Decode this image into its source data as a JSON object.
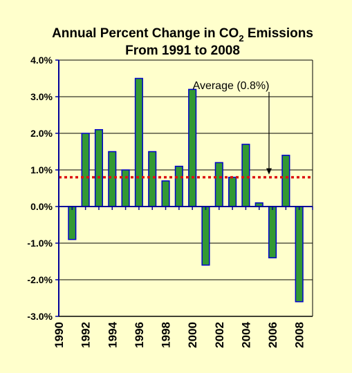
{
  "chart_data": {
    "type": "bar",
    "title_main": "Annual Percent Change in CO",
    "title_sub": "2",
    "title_tail": " Emissions",
    "title_line2": "From 1991 to 2008",
    "x": [
      1991,
      1992,
      1993,
      1994,
      1995,
      1996,
      1997,
      1998,
      1999,
      2000,
      2001,
      2002,
      2003,
      2004,
      2005,
      2006,
      2007,
      2008
    ],
    "values": [
      -0.9,
      2.0,
      2.1,
      1.5,
      1.0,
      3.5,
      1.5,
      0.7,
      1.1,
      3.2,
      -1.6,
      1.2,
      0.8,
      1.7,
      0.1,
      -1.4,
      1.4,
      -2.6
    ],
    "ylim": [
      -3.0,
      4.0
    ],
    "yticks": [
      -3.0,
      -2.0,
      -1.0,
      0.0,
      1.0,
      2.0,
      3.0,
      4.0
    ],
    "ytick_labels": [
      "-3.0%",
      "-2.0%",
      "-1.0%",
      "0.0%",
      "1.0%",
      "2.0%",
      "3.0%",
      "4.0%"
    ],
    "xticks": [
      1990,
      1992,
      1994,
      1996,
      1998,
      2000,
      2002,
      2004,
      2006,
      2008
    ],
    "xtick_labels": [
      "1990",
      "1992",
      "1994",
      "1996",
      "1998",
      "2000",
      "2002",
      "2004",
      "2006",
      "2008"
    ],
    "xlim": [
      1990,
      2009
    ],
    "average": 0.8,
    "average_label": "Average (0.8%)",
    "grid": true,
    "colors": {
      "bar_fill": "#339933",
      "bar_edge": "#0000CC",
      "average_line": "#DD1111",
      "axis": "#000099",
      "background": "#FFFFCC"
    }
  }
}
